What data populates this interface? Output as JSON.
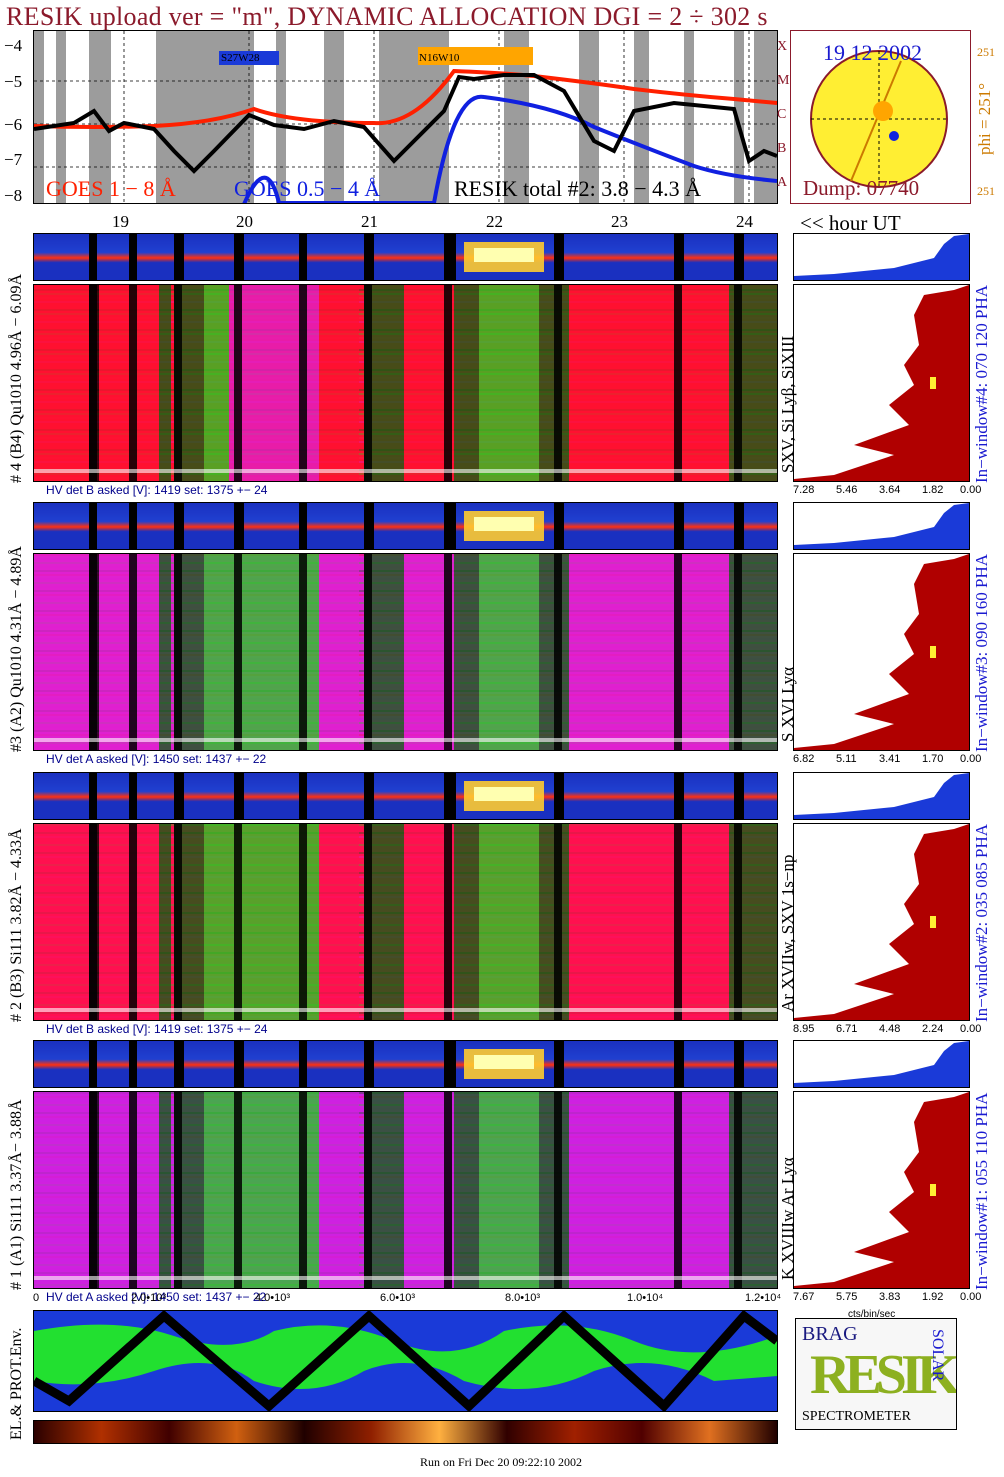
{
  "title": "RESIK upload ver = \"m\", DYNAMIC ALLOCATION  DGI =   2 ÷ 302 s",
  "goes": {
    "yticks": [
      "−4",
      "−5",
      "−6",
      "−7",
      "−8"
    ],
    "hours": [
      "19",
      "20",
      "21",
      "22",
      "23",
      "24"
    ],
    "hour_label": "<< hour UT",
    "legend_goes18": "GOES 1 − 8 Å",
    "legend_goes054": "GOES 0.5 − 4 Å",
    "legend_resik": "RESIK total #2: 3.8 − 4.3 Å",
    "flare_labels": [
      "S27W28",
      "N16W10"
    ],
    "classes": [
      "X",
      "M",
      "C",
      "B",
      "A"
    ]
  },
  "sun": {
    "date": "19 12 2002",
    "phi": "phi = 251°",
    "phi_small_top": "251",
    "phi_small_bottom": "251",
    "dump": "Dump: 07740"
  },
  "detectors": [
    {
      "label": "# 4 (B4) Qu1010 4.96Å − 6.09Å",
      "lines": "SXV, Si Lyβ, SiXIII",
      "hv": "HV det B asked [V]:  1419 set:  1375  +−  24",
      "ticks": [
        "7.28",
        "5.46",
        "3.64",
        "1.82",
        "0.00"
      ],
      "window": "In−window#4:  070 120 PHA"
    },
    {
      "label": "#3 (A2) Qu1010  4.31Å − 4.89Å",
      "lines": "S XVI Lyα",
      "hv": "HV det A asked [V]:  1450 set:  1437  +−  22",
      "ticks": [
        "6.82",
        "5.11",
        "3.41",
        "1.70",
        "0.00"
      ],
      "window": "In−window#3:  090 160 PHA"
    },
    {
      "label": "# 2 (B3) Si111  3.82Å − 4.33Å",
      "lines": "Ar XVIIw,  SXV 1s−np",
      "hv": "HV det B asked [V]:  1419 set:  1375  +−  24",
      "ticks": [
        "8.95",
        "6.71",
        "4.48",
        "2.24",
        "0.00"
      ],
      "window": "In−window#2:  035 085 PHA"
    },
    {
      "label": "# 1 (A1) Si111  3.37Å− 3.88Å",
      "lines": "K XVIIIw  Ar Lyα",
      "hv": "HV det A asked [V]:  1450 set:  1437  +−  22",
      "ticks": [
        "7.67",
        "5.75",
        "3.83",
        "1.92",
        "0.00"
      ],
      "window": "In−window#1:  055 110 PHA"
    }
  ],
  "counts_axis": [
    "0",
    "2.0•10³",
    "4.0•10³",
    "6.0•10³",
    "8.0•10³",
    "1.0•10⁴",
    "1.2•10⁴"
  ],
  "cts_label": "cts/bin/sec",
  "env_label": "EL.& PROT.Env.",
  "logo": {
    "line1": "BRAG",
    "main": "RESIK",
    "side": "SOLAR",
    "bottom": "SPECTROMETER"
  },
  "footer": "Run on Fri Dec 20 09:22:10 2002",
  "colors": {
    "title": "#8b1a2b",
    "goes18": "#ff2000",
    "goes054": "#1020e0",
    "resik": "#000000",
    "pha_bar": "#b00000",
    "pha_window": "#1a3ad8"
  }
}
